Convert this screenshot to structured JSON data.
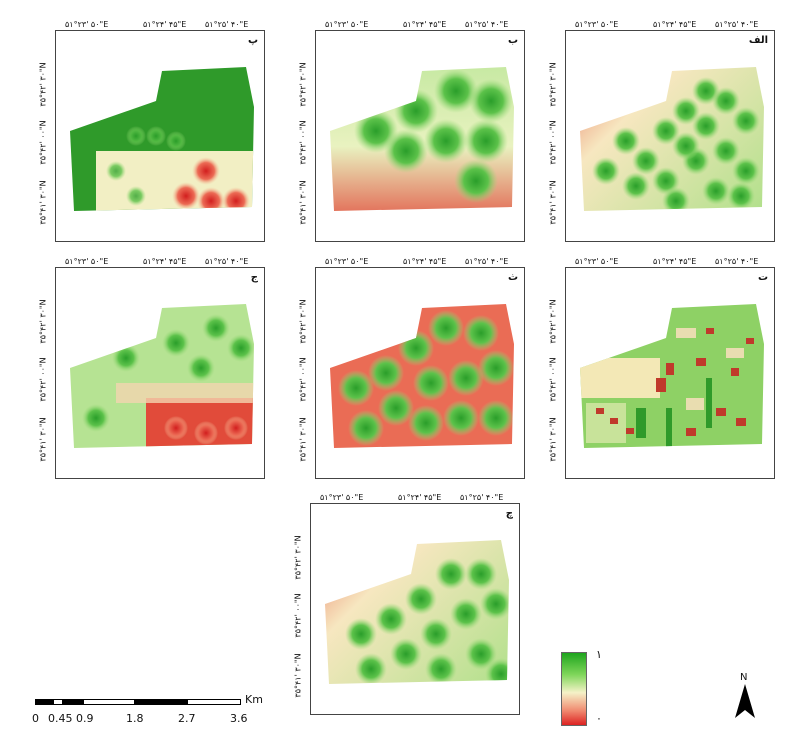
{
  "grid_ticks": {
    "top": [
      "۵۱°۲۳' ۵۰\"E",
      "۵۱°۲۴' ۴۵\"E",
      "۵۱°۲۵' ۴۰\"E"
    ],
    "side": [
      "۳۵°۴۲' ۳۰\"N",
      "۳۵°۴۲' ۰۰\"N",
      "۳۵°۴۱' ۳۰\"N"
    ]
  },
  "panels": [
    {
      "label": "الف"
    },
    {
      "label": "ب"
    },
    {
      "label": "پ"
    },
    {
      "label": "ت"
    },
    {
      "label": "ث"
    },
    {
      "label": "ج"
    },
    {
      "label": "چ"
    }
  ],
  "legend": {
    "max": "۱",
    "min": "۰",
    "colors": [
      "#1ea51e",
      "#f5f2c8",
      "#dd2222"
    ]
  },
  "scale": {
    "labels": [
      "0",
      "0.45",
      "0.9",
      "1.8",
      "2.7",
      "3.6"
    ],
    "unit": "Km"
  },
  "north": {
    "label": "N",
    "icon": "north-arrow-icon"
  }
}
